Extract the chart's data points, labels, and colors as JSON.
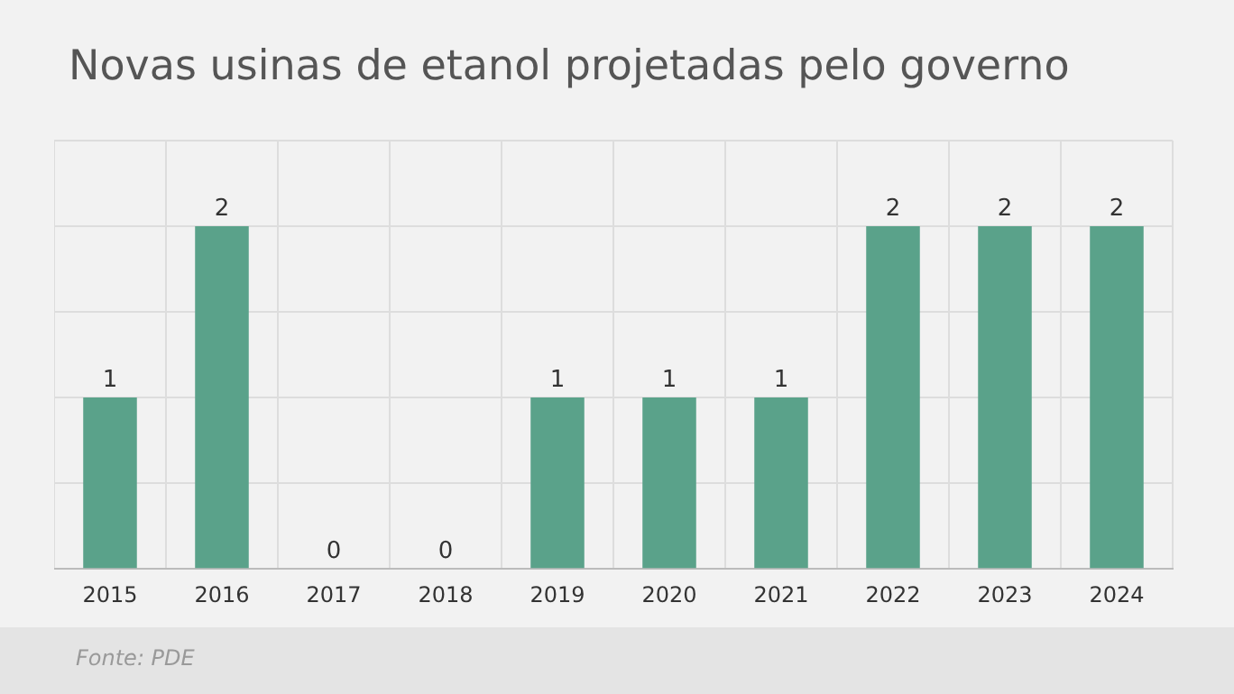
{
  "chart_data": {
    "type": "bar",
    "title": "Novas usinas de etanol projetadas pelo governo",
    "categories": [
      "2015",
      "2016",
      "2017",
      "2018",
      "2019",
      "2020",
      "2021",
      "2022",
      "2023",
      "2024"
    ],
    "values": [
      1,
      2,
      0,
      0,
      1,
      1,
      1,
      2,
      2,
      2
    ],
    "color": "#5aa28a",
    "ylim": [
      0,
      2.5
    ],
    "yticks": [
      {
        "value": 0,
        "label": null
      },
      {
        "value": 0.5,
        "label": null
      },
      {
        "value": 1,
        "label": null
      },
      {
        "value": 1.5,
        "label": null
      },
      {
        "value": 2,
        "label": null
      },
      {
        "value": 2.5,
        "label": null
      }
    ],
    "tick_labels": "x",
    "grid": true,
    "legend": false,
    "data_labels": true,
    "annotations": [
      "Fonte: PDE"
    ]
  }
}
